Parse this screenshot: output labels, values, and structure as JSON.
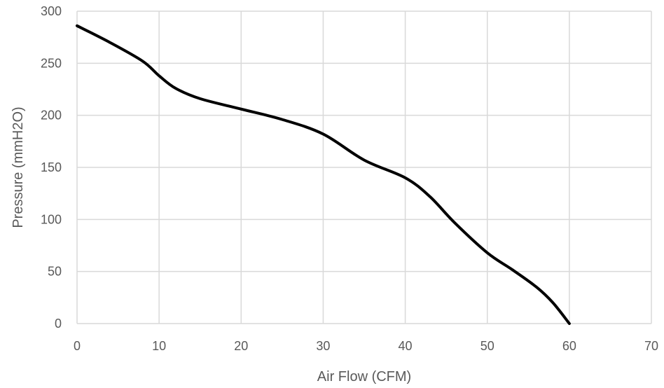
{
  "chart_data": {
    "type": "line",
    "xlabel": "Air Flow (CFM)",
    "ylabel": "Pressure (mmH2O)",
    "xlim": [
      0,
      70
    ],
    "ylim": [
      0,
      300
    ],
    "x_ticks": [
      "0",
      "10",
      "20",
      "30",
      "40",
      "50",
      "60",
      "70"
    ],
    "y_ticks": [
      "0",
      "50",
      "100",
      "150",
      "200",
      "250",
      "300"
    ],
    "grid": true,
    "legend": "none",
    "colors": {
      "line": "#000000",
      "grid": "#d9d9d9",
      "text": "#595959"
    },
    "series": [
      {
        "x": [
          0,
          4,
          8,
          10,
          12,
          15,
          20,
          25,
          30,
          35,
          40,
          43,
          46,
          50,
          53,
          56,
          58,
          60
        ],
        "y": [
          286,
          270,
          252,
          238,
          226,
          216,
          206,
          196,
          182,
          157,
          140,
          122,
          97,
          68,
          52,
          35,
          20,
          0
        ]
      }
    ]
  }
}
